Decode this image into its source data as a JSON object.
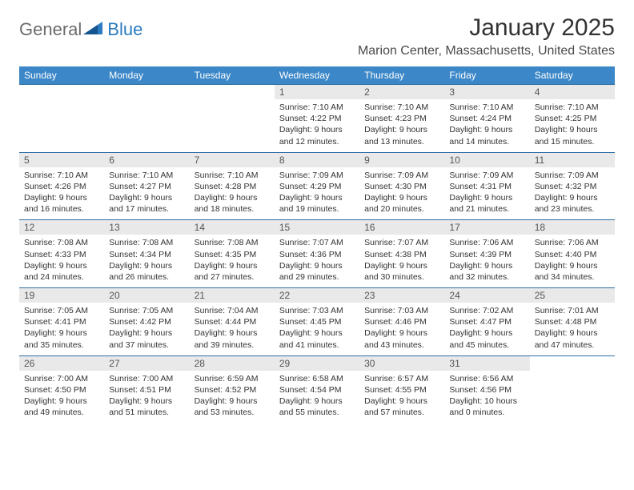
{
  "logo": {
    "word1": "General",
    "word2": "Blue"
  },
  "title": "January 2025",
  "location": "Marion Center, Massachusetts, United States",
  "colors": {
    "header_bg": "#3b87c8",
    "header_text": "#ffffff",
    "daynum_bg": "#e9e9e9",
    "row_border": "#2f6fa3",
    "logo_gray": "#6b6b6b",
    "logo_blue": "#2a7bbf"
  },
  "day_names": [
    "Sunday",
    "Monday",
    "Tuesday",
    "Wednesday",
    "Thursday",
    "Friday",
    "Saturday"
  ],
  "weeks": [
    {
      "nums": [
        "",
        "",
        "",
        "1",
        "2",
        "3",
        "4"
      ],
      "cells": [
        null,
        null,
        null,
        {
          "sunrise": "7:10 AM",
          "sunset": "4:22 PM",
          "daylight": "9 hours and 12 minutes."
        },
        {
          "sunrise": "7:10 AM",
          "sunset": "4:23 PM",
          "daylight": "9 hours and 13 minutes."
        },
        {
          "sunrise": "7:10 AM",
          "sunset": "4:24 PM",
          "daylight": "9 hours and 14 minutes."
        },
        {
          "sunrise": "7:10 AM",
          "sunset": "4:25 PM",
          "daylight": "9 hours and 15 minutes."
        }
      ]
    },
    {
      "nums": [
        "5",
        "6",
        "7",
        "8",
        "9",
        "10",
        "11"
      ],
      "cells": [
        {
          "sunrise": "7:10 AM",
          "sunset": "4:26 PM",
          "daylight": "9 hours and 16 minutes."
        },
        {
          "sunrise": "7:10 AM",
          "sunset": "4:27 PM",
          "daylight": "9 hours and 17 minutes."
        },
        {
          "sunrise": "7:10 AM",
          "sunset": "4:28 PM",
          "daylight": "9 hours and 18 minutes."
        },
        {
          "sunrise": "7:09 AM",
          "sunset": "4:29 PM",
          "daylight": "9 hours and 19 minutes."
        },
        {
          "sunrise": "7:09 AM",
          "sunset": "4:30 PM",
          "daylight": "9 hours and 20 minutes."
        },
        {
          "sunrise": "7:09 AM",
          "sunset": "4:31 PM",
          "daylight": "9 hours and 21 minutes."
        },
        {
          "sunrise": "7:09 AM",
          "sunset": "4:32 PM",
          "daylight": "9 hours and 23 minutes."
        }
      ]
    },
    {
      "nums": [
        "12",
        "13",
        "14",
        "15",
        "16",
        "17",
        "18"
      ],
      "cells": [
        {
          "sunrise": "7:08 AM",
          "sunset": "4:33 PM",
          "daylight": "9 hours and 24 minutes."
        },
        {
          "sunrise": "7:08 AM",
          "sunset": "4:34 PM",
          "daylight": "9 hours and 26 minutes."
        },
        {
          "sunrise": "7:08 AM",
          "sunset": "4:35 PM",
          "daylight": "9 hours and 27 minutes."
        },
        {
          "sunrise": "7:07 AM",
          "sunset": "4:36 PM",
          "daylight": "9 hours and 29 minutes."
        },
        {
          "sunrise": "7:07 AM",
          "sunset": "4:38 PM",
          "daylight": "9 hours and 30 minutes."
        },
        {
          "sunrise": "7:06 AM",
          "sunset": "4:39 PM",
          "daylight": "9 hours and 32 minutes."
        },
        {
          "sunrise": "7:06 AM",
          "sunset": "4:40 PM",
          "daylight": "9 hours and 34 minutes."
        }
      ]
    },
    {
      "nums": [
        "19",
        "20",
        "21",
        "22",
        "23",
        "24",
        "25"
      ],
      "cells": [
        {
          "sunrise": "7:05 AM",
          "sunset": "4:41 PM",
          "daylight": "9 hours and 35 minutes."
        },
        {
          "sunrise": "7:05 AM",
          "sunset": "4:42 PM",
          "daylight": "9 hours and 37 minutes."
        },
        {
          "sunrise": "7:04 AM",
          "sunset": "4:44 PM",
          "daylight": "9 hours and 39 minutes."
        },
        {
          "sunrise": "7:03 AM",
          "sunset": "4:45 PM",
          "daylight": "9 hours and 41 minutes."
        },
        {
          "sunrise": "7:03 AM",
          "sunset": "4:46 PM",
          "daylight": "9 hours and 43 minutes."
        },
        {
          "sunrise": "7:02 AM",
          "sunset": "4:47 PM",
          "daylight": "9 hours and 45 minutes."
        },
        {
          "sunrise": "7:01 AM",
          "sunset": "4:48 PM",
          "daylight": "9 hours and 47 minutes."
        }
      ]
    },
    {
      "nums": [
        "26",
        "27",
        "28",
        "29",
        "30",
        "31",
        ""
      ],
      "cells": [
        {
          "sunrise": "7:00 AM",
          "sunset": "4:50 PM",
          "daylight": "9 hours and 49 minutes."
        },
        {
          "sunrise": "7:00 AM",
          "sunset": "4:51 PM",
          "daylight": "9 hours and 51 minutes."
        },
        {
          "sunrise": "6:59 AM",
          "sunset": "4:52 PM",
          "daylight": "9 hours and 53 minutes."
        },
        {
          "sunrise": "6:58 AM",
          "sunset": "4:54 PM",
          "daylight": "9 hours and 55 minutes."
        },
        {
          "sunrise": "6:57 AM",
          "sunset": "4:55 PM",
          "daylight": "9 hours and 57 minutes."
        },
        {
          "sunrise": "6:56 AM",
          "sunset": "4:56 PM",
          "daylight": "10 hours and 0 minutes."
        },
        null
      ]
    }
  ],
  "labels": {
    "sunrise": "Sunrise:",
    "sunset": "Sunset:",
    "daylight": "Daylight:"
  }
}
